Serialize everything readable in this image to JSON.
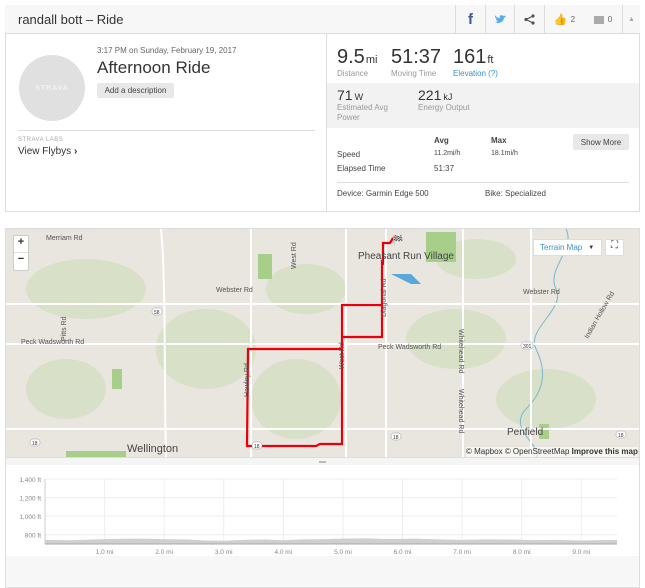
{
  "header": {
    "title": "randall bott – Ride",
    "kudos_count": "2",
    "comment_count": "0",
    "icons": [
      "facebook-icon",
      "twitter-icon",
      "share-icon",
      "kudos-icon",
      "comment-icon",
      "collapse-caret-icon"
    ]
  },
  "activity": {
    "avatar_text": "STRAVA",
    "datetime": "3:17 PM on Sunday, February 19, 2017",
    "title": "Afternoon Ride",
    "add_description": "Add a description",
    "labs_label": "STRAVA LABS",
    "flybys": "View Flybys"
  },
  "stats": {
    "distance": {
      "value": "9.5",
      "unit": "mi",
      "label": "Distance"
    },
    "moving_time": {
      "value": "51:37",
      "label": "Moving Time"
    },
    "elevation": {
      "value": "161",
      "unit": "ft",
      "label": "Elevation (?)"
    },
    "power": {
      "value": "71",
      "unit": "W",
      "label": "Estimated Avg Power"
    },
    "energy": {
      "value": "221",
      "unit": "kJ",
      "label": "Energy Output"
    },
    "table": {
      "avg_header": "Avg",
      "max_header": "Max",
      "speed_label": "Speed",
      "speed_avg": "11.2mi/h",
      "speed_max": "18.1mi/h",
      "elapsed_label": "Elapsed Time",
      "elapsed_avg": "51:37"
    },
    "show_more": "Show More",
    "device": "Device: Garmin Edge 500",
    "bike": "Bike: Specialized"
  },
  "map": {
    "zoom_in": "+",
    "zoom_out": "−",
    "map_type": "Terrain Map",
    "attribution_mapbox": "© Mapbox",
    "attribution_osm": "© OpenStreetMap",
    "improve": "Improve this map",
    "labels": {
      "merriam": "Merriam Rd",
      "west_top": "West Rd",
      "pheasant": "Pheasant Run Village",
      "diagonal": "Diagonal Rd",
      "webster1": "Webster Rd",
      "webster2": "Webster Rd",
      "pitts": "Pitts Rd",
      "peck1": "Peck Wadsworth Rd",
      "peck2": "Peck Wadsworth Rd",
      "hawley": "Hawley Rd",
      "west_mid": "West Rd",
      "whitehead1": "Whitehead Rd",
      "whitehead2": "Whitehead Rd",
      "indian": "Indian Hollow Rd",
      "wellington": "Wellington",
      "penfield": "Penfield",
      "r58": "58",
      "r301": "301",
      "r18a": "18",
      "r18b": "18",
      "r18c": "18",
      "r18d": "18"
    },
    "route_color": "#e8000b"
  },
  "chart_data": {
    "type": "area",
    "xlabel": "",
    "ylabel": "",
    "xlim": [
      0,
      9.6
    ],
    "ylim": [
      700,
      1400
    ],
    "y_ticks": [
      "800 ft",
      "1,000 ft",
      "1,200 ft",
      "1,400 ft"
    ],
    "y_tick_values": [
      800,
      1000,
      1200,
      1400
    ],
    "x_ticks": [
      "1.0 mi",
      "2.0 mi",
      "3.0 mi",
      "4.0 mi",
      "5.0 mi",
      "6.0 mi",
      "7.0 mi",
      "8.0 mi",
      "9.0 mi"
    ],
    "x_tick_values": [
      1,
      2,
      3,
      4,
      5,
      6,
      7,
      8,
      9
    ],
    "x": [
      0,
      0.4,
      0.8,
      1.2,
      1.6,
      2.0,
      2.4,
      2.7,
      3.0,
      3.3,
      3.7,
      4.0,
      4.3,
      4.7,
      5.0,
      5.4,
      5.8,
      6.2,
      6.6,
      7.0,
      7.4,
      7.8,
      8.2,
      8.6,
      9.0,
      9.3,
      9.6
    ],
    "y": [
      745,
      740,
      748,
      755,
      758,
      752,
      748,
      738,
      735,
      745,
      748,
      740,
      750,
      752,
      758,
      760,
      752,
      758,
      750,
      745,
      750,
      748,
      742,
      745,
      738,
      742,
      745
    ],
    "fill": "#cfcfcf"
  }
}
